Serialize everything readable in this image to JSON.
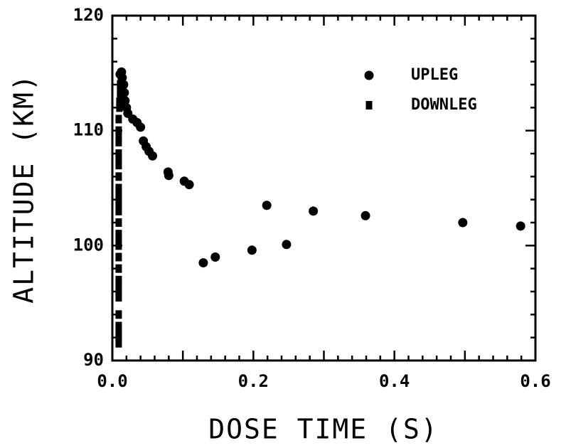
{
  "chart_data": {
    "type": "scatter",
    "xlabel": "DOSE TIME (S)",
    "ylabel": "ALTITUDE (KM)",
    "xlim": [
      0,
      0.6
    ],
    "ylim": [
      90,
      120
    ],
    "xticks": [
      {
        "value": 0,
        "label": "0.0"
      },
      0.2,
      0.4,
      0.6
    ],
    "yticks": [
      90,
      100,
      110,
      120
    ],
    "legend": "upper right",
    "series": [
      {
        "name": "UPLEG",
        "marker": "circle",
        "color": "#000000",
        "x": [
          0.129,
          0.146,
          0.198,
          0.247,
          0.219,
          0.285,
          0.359,
          0.497,
          0.579,
          0.109,
          0.102,
          0.08,
          0.079,
          0.057,
          0.052,
          0.048,
          0.044,
          0.04,
          0.035,
          0.029,
          0.022,
          0.02,
          0.018,
          0.017,
          0.016,
          0.014,
          0.013,
          0.011
        ],
        "values": [
          98.5,
          99.0,
          99.6,
          100.1,
          103.5,
          103.0,
          102.6,
          102.0,
          101.7,
          105.3,
          105.6,
          106.1,
          106.4,
          107.8,
          108.2,
          108.6,
          109.1,
          110.3,
          110.7,
          111.0,
          111.5,
          112.0,
          112.6,
          113.3,
          114.0,
          114.6,
          115.1,
          114.9
        ]
      },
      {
        "name": "DOWNLEG",
        "marker": "square",
        "color": "#000000",
        "x": [
          0.012,
          0.012,
          0.011,
          0.011,
          0.011,
          0.01,
          0.01,
          0.009,
          0.009,
          0.009,
          0.009,
          0.009,
          0.009,
          0.009,
          0.009,
          0.009,
          0.009,
          0.009,
          0.009,
          0.009,
          0.009,
          0.009,
          0.009,
          0.009,
          0.009,
          0.009,
          0.009,
          0.009,
          0.009,
          0.009,
          0.009,
          0.009,
          0.009,
          0.009,
          0.009
        ],
        "values": [
          115.0,
          114.5,
          114.0,
          113.5,
          113.0,
          112.5,
          112.0,
          111.0,
          110.0,
          109.5,
          109.0,
          108.0,
          107.5,
          107.0,
          106.0,
          105.0,
          104.5,
          104.0,
          103.5,
          103.0,
          102.0,
          101.0,
          100.5,
          100.0,
          99.0,
          98.0,
          97.0,
          96.5,
          96.0,
          95.5,
          94.0,
          93.0,
          92.5,
          92.0,
          91.5
        ]
      }
    ]
  }
}
